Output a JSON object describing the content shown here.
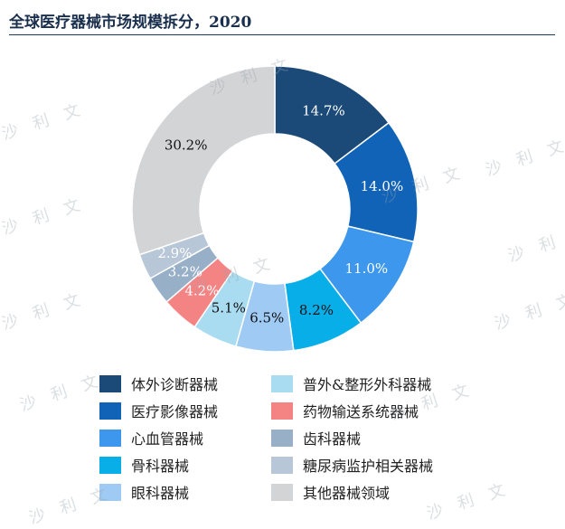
{
  "title": "全球医疗器械市场规模拆分，2020",
  "watermark_text": "沙 利 文",
  "chart_data": {
    "type": "pie",
    "donut": true,
    "start": "top",
    "direction": "clockwise",
    "slices": [
      {
        "name": "体外诊断器械",
        "value": 14.7,
        "label": "14.7%",
        "color": "#1b4a78",
        "label_color": "#ffffff"
      },
      {
        "name": "医疗影像器械",
        "value": 14.0,
        "label": "14.0%",
        "color": "#1163b8",
        "label_color": "#ffffff"
      },
      {
        "name": "心血管器械",
        "value": 11.0,
        "label": "11.0%",
        "color": "#3d97ec",
        "label_color": "#ffffff"
      },
      {
        "name": "骨科器械",
        "value": 8.2,
        "label": "8.2%",
        "color": "#08aee8",
        "label_color": "#111111"
      },
      {
        "name": "眼科器械",
        "value": 6.5,
        "label": "6.5%",
        "color": "#9ecaf4",
        "label_color": "#111111"
      },
      {
        "name": "普外&整形外科器械",
        "value": 5.1,
        "label": "5.1%",
        "color": "#a9dcf0",
        "label_color": "#111111"
      },
      {
        "name": "药物输送系统器械",
        "value": 4.2,
        "label": "4.2%",
        "color": "#f48484",
        "label_color": "#ffffff"
      },
      {
        "name": "齿科器械",
        "value": 3.2,
        "label": "3.2%",
        "color": "#98afc8",
        "label_color": "#ffffff"
      },
      {
        "name": "糖尿病监护相关器械",
        "value": 2.9,
        "label": "2.9%",
        "color": "#b8c7d8",
        "label_color": "#ffffff"
      },
      {
        "name": "其他器械领域",
        "value": 30.2,
        "label": "30.2%",
        "color": "#d3d4d6",
        "label_color": "#111111"
      }
    ],
    "legend": {
      "position": "bottom",
      "columns": [
        [
          "体外诊断器械",
          "医疗影像器械",
          "心血管器械",
          "骨科器械",
          "眼科器械"
        ],
        [
          "普外&整形外科器械",
          "药物输送系统器械",
          "齿科器械",
          "糖尿病监护相关器械",
          "其他器械领域"
        ]
      ]
    }
  }
}
